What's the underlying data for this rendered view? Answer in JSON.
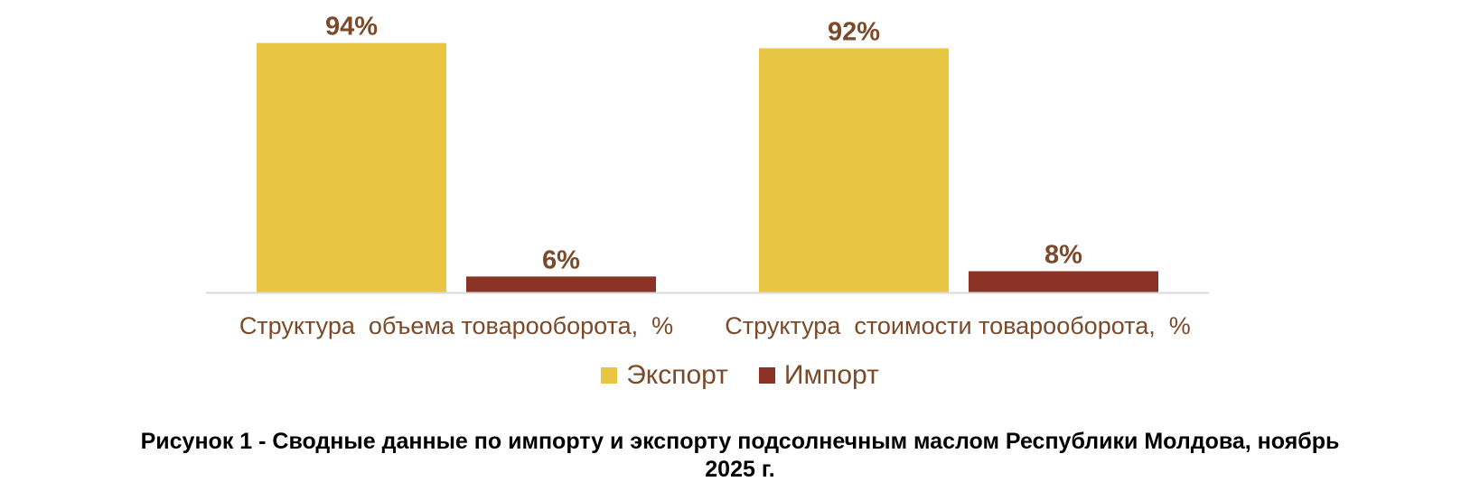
{
  "chart_data": {
    "type": "bar",
    "categories": [
      "Структура  объема товарооборота,  %",
      "Структура  стоимости товарооборота,  %"
    ],
    "series": [
      {
        "name": "Экспорт",
        "values": [
          94,
          92
        ],
        "labels": [
          "94%",
          "92%"
        ],
        "color": "#E8C644"
      },
      {
        "name": "Импорт",
        "values": [
          6,
          8
        ],
        "labels": [
          "6%",
          "8%"
        ],
        "color": "#8B3326"
      }
    ],
    "ylim": [
      0,
      100
    ],
    "grid": false,
    "legend_position": "bottom",
    "label_color": "#7a4a2a",
    "axis_color": "#d9d9d9"
  },
  "caption": {
    "line1": "Рисунок 1 - Сводные данные по импорту и экспорту подсолнечным маслом Республики Молдова, ноябрь",
    "line2": "2025 г."
  }
}
